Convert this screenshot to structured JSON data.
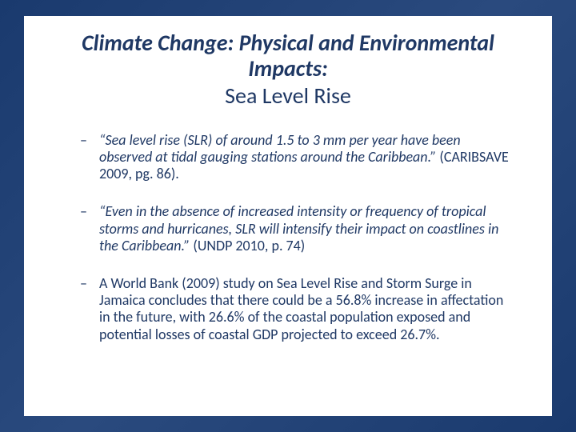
{
  "slide": {
    "background_color": "#2a4a7e",
    "content_bg": "#ffffff",
    "text_color": "#1f3864",
    "title": {
      "line1": "Climate Change: Physical and Environmental Impacts:",
      "line2": "Sea Level Rise",
      "fontsize": 28
    },
    "bullets": [
      {
        "quote": "“Sea level rise (SLR) of around 1.5 to 3 mm per year have been observed at tidal gauging stations around the Caribbean.”",
        "citation": " (CARIBSAVE 2009, pg. 86)."
      },
      {
        "quote": "“Even in the absence of increased intensity or frequency of tropical storms and hurricanes, SLR will intensify their impact on coastlines in the Caribbean.”",
        "citation": " (UNDP 2010, p. 74)"
      },
      {
        "quote": "",
        "citation": "A World Bank (2009) study on Sea Level Rise and Storm Surge in Jamaica concludes that there could be a 56.8% increase in affectation in the future, with 26.6% of the coastal population exposed and potential losses of coastal GDP projected to exceed 26.7%."
      }
    ],
    "bullet_fontsize": 18
  }
}
